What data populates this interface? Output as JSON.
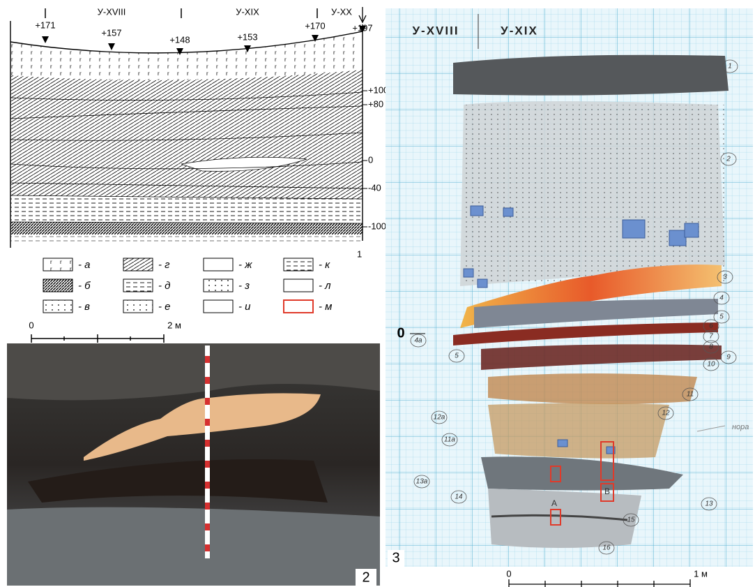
{
  "panel1": {
    "label": "1",
    "trenches": [
      "У-XVIII",
      "У-XIX",
      "У-XX"
    ],
    "surface_marks": [
      "+171",
      "+157",
      "+148",
      "+153",
      "+170",
      "+197"
    ],
    "depth_marks": [
      "+100",
      "+80",
      "0",
      "-40",
      "-100"
    ],
    "legend": [
      "- а",
      "- б",
      "- в",
      "- г",
      "- д",
      "- е",
      "- ж",
      "- з",
      "- и",
      "- к",
      "- л",
      "- м"
    ],
    "scale": [
      "0",
      "2 м"
    ]
  },
  "panel2": {
    "label": "2"
  },
  "panel3": {
    "label": "3",
    "trenches": [
      "У-XVIII",
      "У-XIX"
    ],
    "zero_mark": "0",
    "layers": [
      "1",
      "2",
      "3",
      "4",
      "5",
      "6",
      "7",
      "8",
      "9",
      "10",
      "11",
      "12",
      "13",
      "14",
      "15",
      "16",
      "4а",
      "5",
      "12а",
      "11а",
      "13а"
    ],
    "squares": [
      "А",
      "В"
    ],
    "note": "нора",
    "scale": [
      "0",
      "1 м"
    ]
  }
}
